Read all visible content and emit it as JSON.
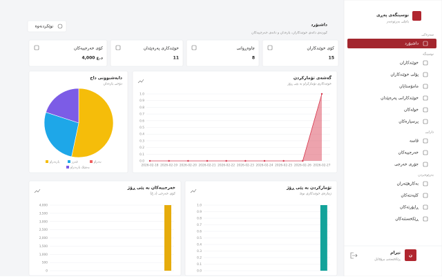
{
  "sidebar": {
    "brand": "نوسینگەی پەڕی",
    "brand_sub": "پانێلی بەڕێوەبەر",
    "sections": [
      {
        "label": "سەرەکی",
        "items": [
          "داشبۆرد"
        ]
      },
      {
        "label": "نوسینگە",
        "items": [
          "خوێندکاران",
          "پۆلی خوێندکاران",
          "مامۆستایان",
          "خوێندکارانی پەرەپێدان",
          "خولەکان",
          "پرسیارەکان"
        ]
      },
      {
        "label": "دارایی",
        "items": [
          "قاسە",
          "خەرجییەکان",
          "جۆری خەرجی"
        ]
      },
      {
        "label": "بەڕێوەبردن",
        "items": [
          "بەکارهێنەران",
          "کلیەنتەکان",
          "ڕاپۆرتەکان",
          "ڕێکخستنەکان"
        ]
      }
    ],
    "user": {
      "name": "نیرام",
      "role": "ڕێکخستنی پرۆفایل",
      "initial": "ن"
    }
  },
  "header": {
    "title": "داشبۆرد",
    "subtitle": "کورتەی داتەی خوێندکاران، پارەدان و داتەی خەرجییەکان",
    "button": "نوێکردنەوە"
  },
  "stats": [
    {
      "label": "کۆی خوێندکاران",
      "value": 15
    },
    {
      "label": "چاوەڕوانی",
      "value": 8
    },
    {
      "label": "خوێندکاری پەرەپێدان",
      "value": 11
    },
    {
      "label": "کۆی خەرجییەکان",
      "value": "4,000 د.ع"
    }
  ],
  "chart_data": [
    {
      "type": "pie",
      "title": "دابەشبوونی داخ",
      "subtitle": "دۆخی پارەدان",
      "categories": [
        "پارەدراو",
        "قەرز",
        "نەدراو",
        "بەشێک پارەدراو"
      ],
      "values": [
        8,
        4,
        0,
        3
      ],
      "colors": [
        "#f5bd0a",
        "#1ea7e8",
        "#ef5f5f",
        "#7c5ce6"
      ]
    },
    {
      "type": "line",
      "title": "گەشەی تۆمارکردن",
      "subtitle": "خوێندکاری تۆمارکراو بە پێی ڕۆژ",
      "categories": [
        "2026-02-18",
        "2026-02-19",
        "2026-02-20",
        "2026-02-21",
        "2026-02-22",
        "2026-02-23",
        "2026-02-24",
        "2026-02-25",
        "2026-02-26",
        "2026-02-27"
      ],
      "values": [
        0,
        0,
        0,
        0,
        0,
        0,
        0,
        0,
        0,
        1
      ],
      "color": "#d6334a",
      "ylim": [
        0,
        1
      ],
      "yticks": [
        {
          "value": 0,
          "label": "0.0"
        },
        0.1,
        0.2,
        0.3,
        0.4,
        0.5,
        0.6,
        0.7,
        0.8,
        0.9,
        {
          "value": 1,
          "label": "1.0"
        }
      ],
      "grid": true
    },
    {
      "type": "bar",
      "title": "خەرجییەکان بە پێی ڕۆژ",
      "subtitle": "کۆی خەرجی (د.ع)",
      "values": [
        0,
        0,
        0,
        0,
        0,
        0,
        0,
        0,
        0,
        4000
      ],
      "color": "#e6ac0c",
      "ylim": [
        0,
        4000
      ],
      "yticks": [
        0,
        500,
        {
          "value": 1000,
          "label": "1,000"
        },
        {
          "value": 1500,
          "label": "1,500"
        },
        {
          "value": 2000,
          "label": "2,000"
        },
        {
          "value": 2500,
          "label": "2,500"
        },
        {
          "value": 3000,
          "label": "3,000"
        },
        {
          "value": 3500,
          "label": "3,500"
        },
        {
          "value": 4000,
          "label": "4,000"
        }
      ],
      "grid": true
    },
    {
      "type": "bar",
      "title": "تۆمارکردن بە پێی ڕۆژ",
      "subtitle": "ژمارەی خوێندکاری نوێ",
      "values": [
        0,
        0,
        0,
        0,
        0,
        0,
        0,
        0,
        0,
        1
      ],
      "color": "#13a39a",
      "ylim": [
        0,
        1
      ],
      "yticks": [
        {
          "value": 0,
          "label": "0.0"
        },
        0.1,
        0.2,
        0.3,
        0.4,
        0.5,
        0.6,
        0.7,
        0.8,
        0.9,
        {
          "value": 1,
          "label": "1.0"
        }
      ],
      "grid": true
    }
  ]
}
